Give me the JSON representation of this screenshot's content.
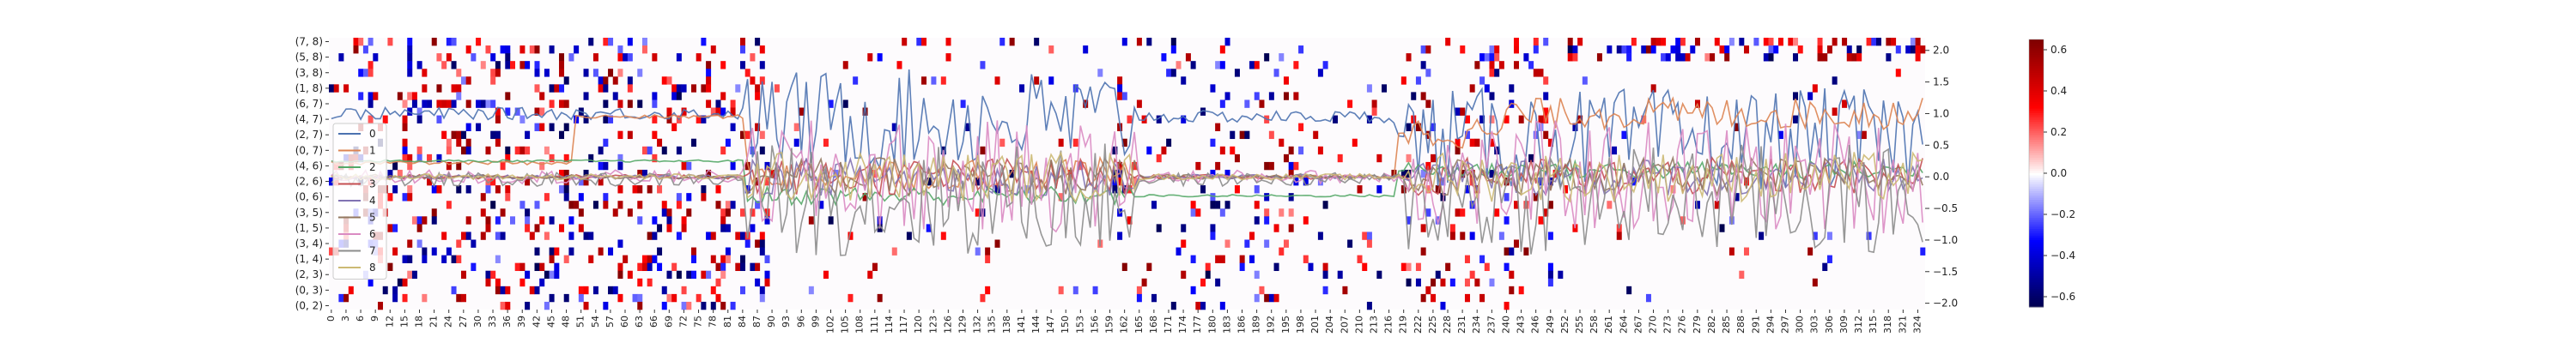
{
  "chart_data": {
    "type": "heatmap",
    "title": "",
    "xlabel": "",
    "ylabel": "",
    "x_tick_labels": [
      "0",
      "3",
      "6",
      "9",
      "12",
      "15",
      "18",
      "21",
      "24",
      "27",
      "30",
      "33",
      "36",
      "39",
      "42",
      "45",
      "48",
      "51",
      "54",
      "57",
      "60",
      "63",
      "66",
      "69",
      "72",
      "75",
      "78",
      "81",
      "84",
      "87",
      "90",
      "93",
      "96",
      "99",
      "102",
      "105",
      "108",
      "111",
      "114",
      "117",
      "120",
      "123",
      "126",
      "129",
      "132",
      "135",
      "138",
      "141",
      "144",
      "147",
      "150",
      "153",
      "156",
      "159",
      "162",
      "165",
      "168",
      "171",
      "174",
      "177",
      "180",
      "183",
      "186",
      "189",
      "192",
      "195",
      "198",
      "201",
      "204",
      "207",
      "210",
      "213",
      "216",
      "219",
      "222",
      "225",
      "228",
      "231",
      "234",
      "237",
      "240",
      "243",
      "246",
      "249",
      "252",
      "255",
      "258",
      "261",
      "264",
      "267",
      "270",
      "273",
      "276",
      "279",
      "282",
      "285",
      "288",
      "291",
      "294",
      "297",
      "300",
      "303",
      "306",
      "309",
      "312",
      "315",
      "318",
      "321",
      "324"
    ],
    "y_tick_labels": [
      "(7, 8)",
      "(5, 8)",
      "(3, 8)",
      "(1, 8)",
      "(6, 7)",
      "(4, 7)",
      "(2, 7)",
      "(0, 7)",
      "(4, 6)",
      "(2, 6)",
      "(0, 6)",
      "(3, 5)",
      "(1, 5)",
      "(3, 4)",
      "(1, 4)",
      "(2, 3)",
      "(0, 3)",
      "(0, 2)"
    ],
    "n_columns": 326,
    "n_rows": 35,
    "colorbar": {
      "colormap": "seismic",
      "min": -0.65,
      "max": 0.65,
      "ticks": [
        "0.6",
        "0.4",
        "0.2",
        "0.0",
        "−0.2",
        "−0.4",
        "−0.6"
      ],
      "tick_values": [
        0.6,
        0.4,
        0.2,
        0.0,
        -0.2,
        -0.4,
        -0.6
      ]
    },
    "overlay": {
      "type": "line",
      "y_axis": "right",
      "ylim": [
        -2.1,
        2.2
      ],
      "y_ticks": [
        "2.0",
        "1.5",
        "1.0",
        "0.5",
        "0.0",
        "−0.5",
        "−1.0",
        "−1.5",
        "−2.0"
      ],
      "y_tick_values": [
        2.0,
        1.5,
        1.0,
        0.5,
        0.0,
        -0.5,
        -1.0,
        -1.5,
        -2.0
      ],
      "legend_position": "left",
      "series": [
        {
          "name": "0",
          "color": "#4c72b0"
        },
        {
          "name": "1",
          "color": "#dd8452"
        },
        {
          "name": "2",
          "color": "#55a868"
        },
        {
          "name": "3",
          "color": "#c44e52"
        },
        {
          "name": "4",
          "color": "#8172b3"
        },
        {
          "name": "5",
          "color": "#937860"
        },
        {
          "name": "6",
          "color": "#da8bc3"
        },
        {
          "name": "7",
          "color": "#8c8c8c"
        },
        {
          "name": "8",
          "color": "#ccb974"
        }
      ]
    }
  }
}
